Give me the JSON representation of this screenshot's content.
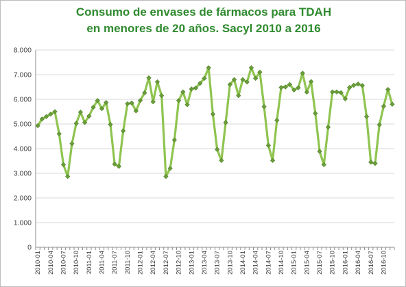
{
  "chart_data": {
    "type": "line",
    "title_lines": [
      "Consumo de envases de fármacos para TDAH",
      "en menores de 20 años. Sacyl  2010 a 2016"
    ],
    "xlabel": "",
    "ylabel": "",
    "ylim": [
      0,
      8000
    ],
    "y_ticks": [
      "0",
      "1.000",
      "2.000",
      "3.000",
      "4.000",
      "5.000",
      "6.000",
      "7.000",
      "8.000"
    ],
    "y_tick_values": [
      0,
      1000,
      2000,
      3000,
      4000,
      5000,
      6000,
      7000,
      8000
    ],
    "grid": true,
    "legend": "none",
    "x_tick_labels": [
      "2010-01",
      "2010-04",
      "2010-07",
      "2010-10",
      "2011-01",
      "2011-04",
      "2011-07",
      "2011-10",
      "2012-01",
      "2012-04",
      "2012-07",
      "2012-10",
      "2013-01",
      "2013-04",
      "2013-07",
      "2013-10",
      "2014-01",
      "2014-04",
      "2014-07",
      "2014-10",
      "2015-01",
      "2015-04",
      "2015-07",
      "2015-10",
      "2016-01",
      "2016-04",
      "2016-07",
      "2016-10"
    ],
    "line_color": "#8fc450",
    "marker_color": "#6a9f3a",
    "series": [
      {
        "values": [
          4930,
          5200,
          5300,
          5400,
          5500,
          4600,
          3350,
          2870,
          4200,
          5020,
          5480,
          5060,
          5320,
          5680,
          5950,
          5620,
          5870,
          4980,
          3370,
          3280,
          4720,
          5820,
          5850,
          5530,
          5950,
          6260,
          6870,
          5900,
          6710,
          6150,
          2870,
          3200,
          4350,
          5950,
          6300,
          5780,
          6420,
          6460,
          6650,
          6850,
          7280,
          5400,
          3970,
          3520,
          5060,
          6600,
          6800,
          6150,
          6800,
          6700,
          7280,
          6850,
          7100,
          5700,
          4130,
          3520,
          5150,
          6480,
          6500,
          6600,
          6380,
          6470,
          7060,
          6290,
          6720,
          5430,
          3890,
          3350,
          4870,
          6300,
          6300,
          6270,
          6020,
          6480,
          6570,
          6620,
          6560,
          5300,
          3450,
          3400,
          4970,
          5720,
          6400,
          5800
        ]
      }
    ]
  }
}
